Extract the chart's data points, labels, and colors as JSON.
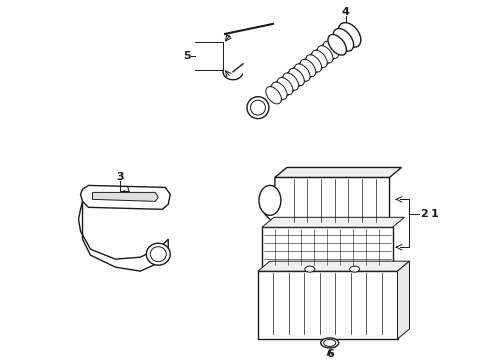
{
  "background_color": "#ffffff",
  "line_color": "#1a1a1a",
  "label_color": "#000000",
  "figsize": [
    4.9,
    3.6
  ],
  "dpi": 100
}
